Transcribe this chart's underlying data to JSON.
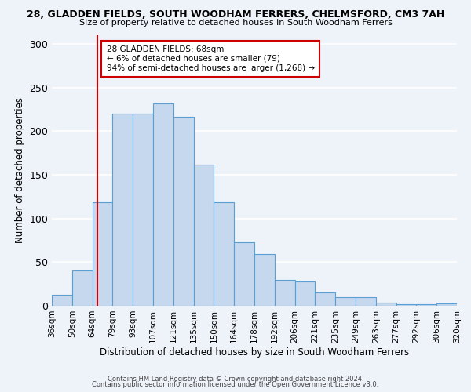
{
  "title": "28, GLADDEN FIELDS, SOUTH WOODHAM FERRERS, CHELMSFORD, CM3 7AH",
  "subtitle": "Size of property relative to detached houses in South Woodham Ferrers",
  "xlabel": "Distribution of detached houses by size in South Woodham Ferrers",
  "ylabel": "Number of detached properties",
  "bin_labels": [
    "36sqm",
    "50sqm",
    "64sqm",
    "79sqm",
    "93sqm",
    "107sqm",
    "121sqm",
    "135sqm",
    "150sqm",
    "164sqm",
    "178sqm",
    "192sqm",
    "206sqm",
    "221sqm",
    "235sqm",
    "249sqm",
    "263sqm",
    "277sqm",
    "292sqm",
    "306sqm",
    "320sqm"
  ],
  "bin_edges": [
    0,
    1,
    2,
    3,
    4,
    5,
    6,
    7,
    8,
    9,
    10,
    11,
    12,
    13,
    14,
    15,
    16,
    17,
    18,
    19,
    20
  ],
  "bar_heights": [
    13,
    40,
    119,
    220,
    220,
    232,
    217,
    162,
    119,
    73,
    59,
    30,
    28,
    15,
    10,
    10,
    4,
    2,
    2,
    3
  ],
  "bar_color": "#c5d8ed",
  "bar_edge_color": "#5a9fd4",
  "ylim": [
    0,
    310
  ],
  "yticks": [
    0,
    50,
    100,
    150,
    200,
    250,
    300
  ],
  "vline_bin": 2,
  "vline_color": "#cc0000",
  "annotation_title": "28 GLADDEN FIELDS: 68sqm",
  "annotation_line1": "← 6% of detached houses are smaller (79)",
  "annotation_line2": "94% of semi-detached houses are larger (1,268) →",
  "annotation_box_color": "#cc0000",
  "bg_color": "#eef2f9",
  "grid_color": "#ffffff",
  "footer1": "Contains HM Land Registry data © Crown copyright and database right 2024.",
  "footer2": "Contains public sector information licensed under the Open Government Licence v3.0."
}
